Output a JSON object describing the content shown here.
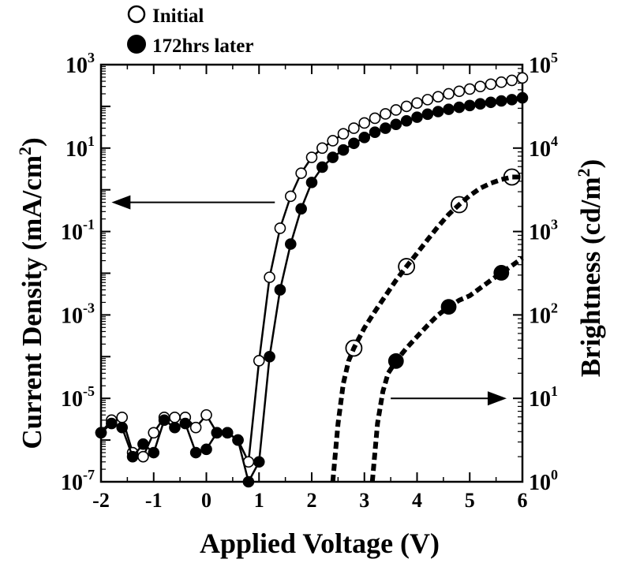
{
  "chart_data": {
    "type": "scatter",
    "xlabel": "Applied Voltage (V)",
    "ylabel_left": "Current Density (mA/cm",
    "ylabel_left_sup": "2",
    "ylabel_left_close": ")",
    "ylabel_right": "Brightness (cd/m",
    "ylabel_right_sup": "2",
    "ylabel_right_close": ")",
    "xlim": [
      -2,
      6
    ],
    "ylim_left": [
      1e-07,
      1000
    ],
    "ylim_right": [
      1,
      100000
    ],
    "yscale": "log",
    "x_ticks": [
      "-2",
      "-1",
      "0",
      "1",
      "2",
      "3",
      "4",
      "5",
      "6"
    ],
    "y_left_ticks": [
      {
        "base": "10",
        "exp": "-7"
      },
      {
        "base": "10",
        "exp": "-5"
      },
      {
        "base": "10",
        "exp": "-3"
      },
      {
        "base": "10",
        "exp": "-1"
      },
      {
        "base": "10",
        "exp": "1"
      },
      {
        "base": "10",
        "exp": "3"
      }
    ],
    "y_right_ticks": [
      {
        "base": "10",
        "exp": "0"
      },
      {
        "base": "10",
        "exp": "1"
      },
      {
        "base": "10",
        "exp": "2"
      },
      {
        "base": "10",
        "exp": "3"
      },
      {
        "base": "10",
        "exp": "4"
      },
      {
        "base": "10",
        "exp": "5"
      }
    ],
    "legend": {
      "placement": "top-left",
      "entries": [
        {
          "label": "Initial",
          "marker": "open-circle"
        },
        {
          "label": "172hrs later",
          "marker": "filled-circle"
        }
      ]
    },
    "annotations": [
      {
        "type": "arrow",
        "direction": "left",
        "meaning": "left axis",
        "x_from": 1.3,
        "x_to": -1.8,
        "y_left": 0.5
      },
      {
        "type": "arrow",
        "direction": "right",
        "meaning": "right axis",
        "x_from": 3.5,
        "x_to": 5.7,
        "y_right": 10
      }
    ],
    "series": [
      {
        "name": "Initial",
        "axis": "left",
        "quantity": "current density",
        "marker": "open",
        "line": "solid",
        "x": [
          -2.0,
          -1.8,
          -1.6,
          -1.4,
          -1.2,
          -1.0,
          -0.8,
          -0.6,
          -0.4,
          -0.2,
          0.0,
          0.2,
          0.4,
          0.6,
          0.8,
          1.0,
          1.2,
          1.4,
          1.6,
          1.8,
          2.0,
          2.2,
          2.4,
          2.6,
          2.8,
          3.0,
          3.2,
          3.4,
          3.6,
          3.8,
          4.0,
          4.2,
          4.4,
          4.6,
          4.8,
          5.0,
          5.2,
          5.4,
          5.6,
          5.8,
          6.0
        ],
        "y": [
          1.5e-06,
          3e-06,
          3.5e-06,
          5e-07,
          4e-07,
          1.5e-06,
          3.5e-06,
          3.5e-06,
          3.5e-06,
          2e-06,
          4e-06,
          1.5e-06,
          1.5e-06,
          1e-06,
          3e-07,
          8e-05,
          0.008,
          0.12,
          0.7,
          2.5,
          6,
          10,
          15,
          22,
          30,
          40,
          52,
          66,
          82,
          100,
          120,
          145,
          170,
          200,
          230,
          260,
          300,
          340,
          380,
          420,
          480
        ]
      },
      {
        "name": "172hrs later",
        "axis": "left",
        "quantity": "current density",
        "marker": "filled",
        "line": "solid",
        "x": [
          -2.0,
          -1.8,
          -1.6,
          -1.4,
          -1.2,
          -1.0,
          -0.8,
          -0.6,
          -0.4,
          -0.2,
          0.0,
          0.2,
          0.4,
          0.6,
          0.8,
          1.0,
          1.2,
          1.4,
          1.6,
          1.8,
          2.0,
          2.2,
          2.4,
          2.6,
          2.8,
          3.0,
          3.2,
          3.4,
          3.6,
          3.8,
          4.0,
          4.2,
          4.4,
          4.6,
          4.8,
          5.0,
          5.2,
          5.4,
          5.6,
          5.8,
          6.0
        ],
        "y": [
          1.5e-06,
          2.5e-06,
          2e-06,
          4e-07,
          8e-07,
          5e-07,
          3e-06,
          2e-06,
          2.5e-06,
          5e-07,
          6e-07,
          1.5e-06,
          1.5e-06,
          1e-06,
          1e-07,
          3e-07,
          0.0001,
          0.004,
          0.05,
          0.35,
          1.5,
          3.5,
          6,
          9,
          13,
          18,
          24,
          30,
          37,
          45,
          55,
          65,
          75,
          85,
          95,
          105,
          115,
          125,
          135,
          145,
          160
        ]
      },
      {
        "name": "Initial",
        "axis": "right",
        "quantity": "brightness",
        "marker": "open",
        "line": "dashed",
        "x": [
          2.4,
          2.5,
          2.6,
          2.7,
          2.8,
          3.0,
          3.2,
          3.4,
          3.6,
          3.8,
          4.0,
          4.2,
          4.4,
          4.6,
          4.8,
          5.0,
          5.2,
          5.4,
          5.6,
          5.8,
          6.0
        ],
        "y": [
          1.0,
          5,
          15,
          28,
          40,
          70,
          110,
          170,
          260,
          380,
          550,
          800,
          1150,
          1600,
          2100,
          2700,
          3300,
          3800,
          4200,
          4500,
          4500
        ],
        "marker_x": [
          2.8,
          3.8,
          4.8,
          5.8
        ]
      },
      {
        "name": "172hrs later",
        "axis": "right",
        "quantity": "brightness",
        "marker": "filled",
        "line": "dashed",
        "x": [
          3.15,
          3.25,
          3.35,
          3.45,
          3.6,
          3.8,
          4.0,
          4.2,
          4.4,
          4.6,
          4.8,
          5.0,
          5.2,
          5.4,
          5.6,
          5.8,
          6.0
        ],
        "y": [
          1.0,
          5,
          12,
          20,
          28,
          40,
          55,
          75,
          100,
          125,
          150,
          170,
          210,
          260,
          320,
          390,
          480
        ],
        "marker_x": [
          3.6,
          4.6,
          5.6
        ]
      }
    ]
  }
}
